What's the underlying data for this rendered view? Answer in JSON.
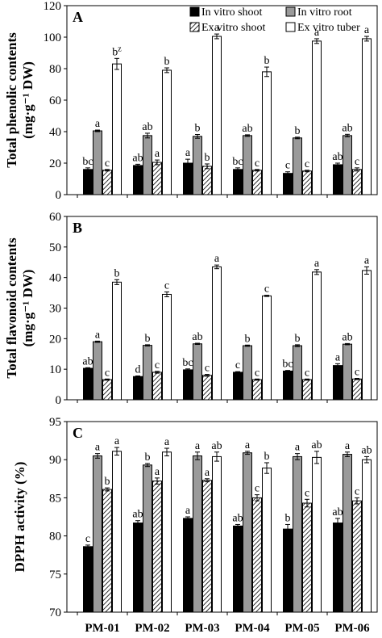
{
  "legend": [
    {
      "label": "In vitro shoot",
      "fill": "#000000",
      "pattern": "solid"
    },
    {
      "label": "In vitro root",
      "fill": "#9a9a9a",
      "pattern": "solid"
    },
    {
      "label": "Ex vitro shoot",
      "fill": "#ffffff",
      "pattern": "hatch"
    },
    {
      "label": "Ex vitro tuber",
      "fill": "#ffffff",
      "pattern": "solid"
    }
  ],
  "chart_data": [
    {
      "type": "bar",
      "panel": "A",
      "ylabel_line1": "Total phenolic contents",
      "ylabel_line2": "(mg·g⁻¹ DW)",
      "ylim": [
        0,
        120
      ],
      "yticks": [
        0,
        20,
        40,
        60,
        80,
        100,
        120
      ],
      "categories": [
        "PM-01",
        "PM-02",
        "PM-03",
        "PM-04",
        "PM-05",
        "PM-06"
      ],
      "legend_position": "top-right",
      "series": [
        {
          "name": "In vitro shoot",
          "values": [
            16,
            18.5,
            20,
            16,
            13.5,
            19
          ],
          "errors": [
            1,
            0.8,
            2.5,
            1,
            1,
            1
          ],
          "letters": [
            "bc",
            "ab",
            "a",
            "bc",
            "c",
            "ab"
          ]
        },
        {
          "name": "In vitro root",
          "values": [
            40.5,
            37.5,
            37,
            37.5,
            36,
            37.5
          ],
          "errors": [
            0.5,
            1.5,
            1.2,
            0.5,
            0.5,
            0.8
          ],
          "letters": [
            "a",
            "ab",
            "b",
            "ab",
            "b",
            "ab"
          ]
        },
        {
          "name": "Ex vitro shoot",
          "values": [
            15.5,
            20.5,
            18,
            15.5,
            15,
            16
          ],
          "errors": [
            0.5,
            1.5,
            1.5,
            0.5,
            0.5,
            1
          ],
          "letters": [
            "c",
            "a",
            "b",
            "c",
            "c",
            "c"
          ]
        },
        {
          "name": "Ex vitro tuber",
          "values": [
            83,
            79,
            100.5,
            78,
            97.5,
            99
          ],
          "errors": [
            3.5,
            1.5,
            1.5,
            3,
            1.5,
            1.5
          ],
          "letters": [
            "bz",
            "b",
            "a",
            "b",
            "a",
            "a"
          ]
        }
      ]
    },
    {
      "type": "bar",
      "panel": "B",
      "ylabel_line1": "Total flavonoid contents",
      "ylabel_line2": "(mg·g⁻¹ DW)",
      "ylim": [
        0,
        60
      ],
      "yticks": [
        0,
        10,
        20,
        30,
        40,
        50,
        60
      ],
      "categories": [
        "PM-01",
        "PM-02",
        "PM-03",
        "PM-04",
        "PM-05",
        "PM-06"
      ],
      "series": [
        {
          "name": "In vitro shoot",
          "values": [
            10.3,
            7.6,
            9.8,
            9,
            9.4,
            11.2
          ],
          "errors": [
            0.2,
            0.2,
            0.3,
            0.2,
            0.2,
            0.6
          ],
          "letters": [
            "ab",
            "d",
            "bc",
            "c",
            "bc",
            "a"
          ]
        },
        {
          "name": "In vitro root",
          "values": [
            19,
            17.8,
            18.3,
            17.7,
            17.7,
            18.2
          ],
          "errors": [
            0.2,
            0.2,
            0.2,
            0.2,
            0.3,
            0.2
          ],
          "letters": [
            "a",
            "b",
            "ab",
            "b",
            "b",
            "ab"
          ]
        },
        {
          "name": "Ex vitro shoot",
          "values": [
            6.6,
            9,
            8,
            6.6,
            6.6,
            6.8
          ],
          "errors": [
            0.2,
            0.3,
            0.3,
            0.2,
            0.2,
            0.2
          ],
          "letters": [
            "c",
            "c",
            "c",
            "c",
            "c",
            "c"
          ]
        },
        {
          "name": "Ex vitro tuber",
          "values": [
            38.5,
            34.5,
            43.5,
            34,
            41.8,
            42.3
          ],
          "errors": [
            0.8,
            0.8,
            0.6,
            0.2,
            0.8,
            1.2
          ],
          "letters": [
            "b",
            "c",
            "a",
            "c",
            "a",
            "a"
          ]
        }
      ]
    },
    {
      "type": "bar",
      "panel": "C",
      "ylabel_line1": "DPPH activity (%)",
      "ylim": [
        70,
        95
      ],
      "yticks": [
        70,
        75,
        80,
        85,
        90,
        95
      ],
      "categories": [
        "PM-01",
        "PM-02",
        "PM-03",
        "PM-04",
        "PM-05",
        "PM-06"
      ],
      "series": [
        {
          "name": "In vitro shoot",
          "values": [
            78.6,
            81.7,
            82.3,
            81.3,
            80.9,
            81.7
          ],
          "errors": [
            0.2,
            0.3,
            0.2,
            0.2,
            0.6,
            0.6
          ],
          "letters": [
            "c",
            "ab",
            "a",
            "ab",
            "b",
            "ab"
          ]
        },
        {
          "name": "In vitro root",
          "values": [
            90.5,
            89.3,
            90.5,
            90.9,
            90.4,
            90.7
          ],
          "errors": [
            0.3,
            0.2,
            0.5,
            0.2,
            0.4,
            0.3
          ],
          "letters": [
            "a",
            "b",
            "a",
            "a",
            "a",
            "a"
          ]
        },
        {
          "name": "Ex vitro shoot",
          "values": [
            86.1,
            87.2,
            87.3,
            85,
            84.3,
            84.6
          ],
          "errors": [
            0.2,
            0.4,
            0.2,
            0.4,
            0.5,
            0.4
          ],
          "letters": [
            "b",
            "a",
            "a",
            "c",
            "c",
            "c"
          ]
        },
        {
          "name": "Ex vitro tuber",
          "values": [
            91.1,
            91,
            90.4,
            88.9,
            90.3,
            90
          ],
          "errors": [
            0.5,
            0.5,
            0.6,
            0.7,
            0.8,
            0.4
          ],
          "letters": [
            "a",
            "a",
            "ab",
            "b",
            "ab",
            "ab"
          ]
        }
      ]
    }
  ]
}
